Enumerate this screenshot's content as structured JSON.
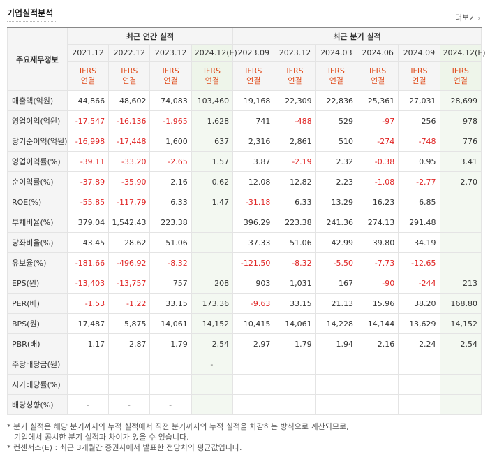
{
  "header": {
    "title": "기업실적분석",
    "more_label": "더보기",
    "more_arrow": "›"
  },
  "table": {
    "corner_label": "주요재무정보",
    "group_annual": "최근 연간 실적",
    "group_quarter": "최근 분기 실적",
    "annual_periods": [
      "2021.12",
      "2022.12",
      "2023.12",
      "2024.12(E)"
    ],
    "quarter_periods": [
      "2023.09",
      "2023.12",
      "2024.03",
      "2024.06",
      "2024.09",
      "2024.12(E)"
    ],
    "ifrs_top": "IFRS",
    "ifrs_bottom": "연결",
    "rows": [
      {
        "label": "매출액(억원)",
        "values": [
          "44,866",
          "48,602",
          "74,083",
          "103,460",
          "19,168",
          "22,309",
          "22,836",
          "25,361",
          "27,031",
          "28,699"
        ]
      },
      {
        "label": "영업이익(억원)",
        "values": [
          "-17,547",
          "-16,136",
          "-1,965",
          "1,628",
          "741",
          "-488",
          "529",
          "-97",
          "256",
          "978"
        ]
      },
      {
        "label": "당기순이익(억원)",
        "values": [
          "-16,998",
          "-17,448",
          "1,600",
          "637",
          "2,316",
          "2,861",
          "510",
          "-274",
          "-748",
          "776"
        ]
      },
      {
        "label": "영업이익률(%)",
        "values": [
          "-39.11",
          "-33.20",
          "-2.65",
          "1.57",
          "3.87",
          "-2.19",
          "2.32",
          "-0.38",
          "0.95",
          "3.41"
        ]
      },
      {
        "label": "순이익률(%)",
        "values": [
          "-37.89",
          "-35.90",
          "2.16",
          "0.62",
          "12.08",
          "12.82",
          "2.23",
          "-1.08",
          "-2.77",
          "2.70"
        ]
      },
      {
        "label": "ROE(%)",
        "values": [
          "-55.85",
          "-117.79",
          "6.33",
          "1.47",
          "-31.18",
          "6.33",
          "13.29",
          "16.23",
          "6.85",
          ""
        ]
      },
      {
        "label": "부채비율(%)",
        "values": [
          "379.04",
          "1,542.43",
          "223.38",
          "",
          "396.29",
          "223.38",
          "241.36",
          "274.13",
          "291.48",
          ""
        ]
      },
      {
        "label": "당좌비율(%)",
        "values": [
          "43.45",
          "28.62",
          "51.06",
          "",
          "37.33",
          "51.06",
          "42.99",
          "39.80",
          "34.19",
          ""
        ]
      },
      {
        "label": "유보율(%)",
        "values": [
          "-181.66",
          "-496.92",
          "-8.32",
          "",
          "-121.50",
          "-8.32",
          "-5.50",
          "-7.73",
          "-12.65",
          ""
        ]
      },
      {
        "label": "EPS(원)",
        "values": [
          "-13,403",
          "-13,757",
          "757",
          "208",
          "903",
          "1,031",
          "167",
          "-90",
          "-244",
          "213"
        ]
      },
      {
        "label": "PER(배)",
        "values": [
          "-1.53",
          "-1.22",
          "33.15",
          "173.36",
          "-9.63",
          "33.15",
          "21.13",
          "15.96",
          "38.20",
          "168.80"
        ]
      },
      {
        "label": "BPS(원)",
        "values": [
          "17,487",
          "5,875",
          "14,061",
          "14,152",
          "10,415",
          "14,061",
          "14,228",
          "14,144",
          "13,629",
          "14,152"
        ]
      },
      {
        "label": "PBR(배)",
        "values": [
          "1.17",
          "2.87",
          "1.79",
          "2.54",
          "2.97",
          "1.79",
          "1.94",
          "2.16",
          "2.24",
          "2.54"
        ]
      },
      {
        "label": "주당배당금(원)",
        "values": [
          "",
          "",
          "",
          "-",
          "",
          "",
          "",
          "",
          "",
          ""
        ]
      },
      {
        "label": "시가배당률(%)",
        "values": [
          "",
          "",
          "",
          "",
          "",
          "",
          "",
          "",
          "",
          ""
        ]
      },
      {
        "label": "배당성향(%)",
        "values": [
          "-",
          "-",
          "-",
          "",
          "",
          "",
          "",
          "",
          "",
          ""
        ]
      }
    ]
  },
  "notes": [
    "* 분기 실적은 해당 분기까지의 누적 실적에서 직전 분기까지의 누적 실적을 차감하는 방식으로 계산되므로,",
    "  기업에서 공시한 분기 실적과 차이가 있을 수 있습니다.",
    "* 컨센서스(E) : 최근 3개월간 증권사에서 발표한 전망치의 평균값입니다."
  ]
}
